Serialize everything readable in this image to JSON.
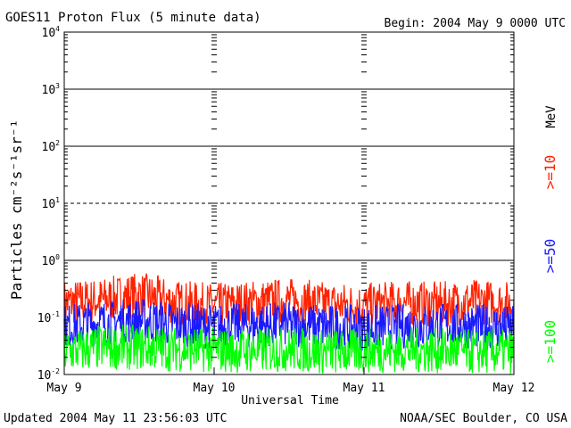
{
  "header": {
    "title": "GOES11 Proton Flux (5 minute data)",
    "begin": "Begin: 2004 May 9 0000 UTC"
  },
  "footer": {
    "updated": "Updated 2004 May 11 23:56:03 UTC",
    "credit": "NOAA/SEC Boulder, CO USA"
  },
  "legend": {
    "unit": "MeV",
    "items": [
      {
        "label": ">=10",
        "color": "#ff2200"
      },
      {
        "label": ">=50",
        "color": "#1a1aff"
      },
      {
        "label": ">=100",
        "color": "#00ff00"
      }
    ]
  },
  "chart_data": {
    "type": "line",
    "title": "GOES11 Proton Flux (5 minute data)",
    "xlabel": "Universal Time",
    "ylabel": "Particles cm⁻²s⁻¹sr⁻¹",
    "yscale": "log",
    "ylim": [
      0.01,
      10000
    ],
    "xlim": [
      "2004-05-09 00:00",
      "2004-05-12 00:00"
    ],
    "x_ticks": [
      "May 9",
      "May 10",
      "May 11",
      "May 12"
    ],
    "y_ticks": [
      {
        "base": "10",
        "exp": "-2"
      },
      {
        "base": "10",
        "exp": "-1"
      },
      {
        "base": "10",
        "exp": "0"
      },
      {
        "base": "10",
        "exp": "1"
      },
      {
        "base": "10",
        "exp": "2"
      },
      {
        "base": "10",
        "exp": "3"
      },
      {
        "base": "10",
        "exp": "4"
      }
    ],
    "solid_gridlines": [
      1,
      100,
      1000
    ],
    "dashed_gridlines": [
      10
    ],
    "series": [
      {
        "name": ">=10 MeV",
        "color": "#ff2200",
        "x_days": [
          0,
          0.25,
          0.5,
          0.75,
          1,
          1.25,
          1.5,
          1.75,
          2,
          2.25,
          2.5,
          2.75,
          3
        ],
        "values": [
          0.18,
          0.2,
          0.25,
          0.18,
          0.16,
          0.18,
          0.2,
          0.17,
          0.16,
          0.18,
          0.17,
          0.19,
          0.17
        ]
      },
      {
        "name": ">=50 MeV",
        "color": "#1a1aff",
        "x_days": [
          0,
          0.25,
          0.5,
          0.75,
          1,
          1.25,
          1.5,
          1.75,
          2,
          2.25,
          2.5,
          2.75,
          3
        ],
        "values": [
          0.07,
          0.08,
          0.09,
          0.075,
          0.07,
          0.072,
          0.075,
          0.068,
          0.065,
          0.07,
          0.072,
          0.07,
          0.065
        ]
      },
      {
        "name": ">=100 MeV",
        "color": "#00ff00",
        "x_days": [
          0,
          0.25,
          0.5,
          0.75,
          1,
          1.25,
          1.5,
          1.75,
          2,
          2.25,
          2.5,
          2.75,
          3
        ],
        "values": [
          0.025,
          0.03,
          0.03,
          0.028,
          0.027,
          0.026,
          0.028,
          0.025,
          0.026,
          0.027,
          0.026,
          0.025,
          0.025
        ]
      }
    ]
  }
}
